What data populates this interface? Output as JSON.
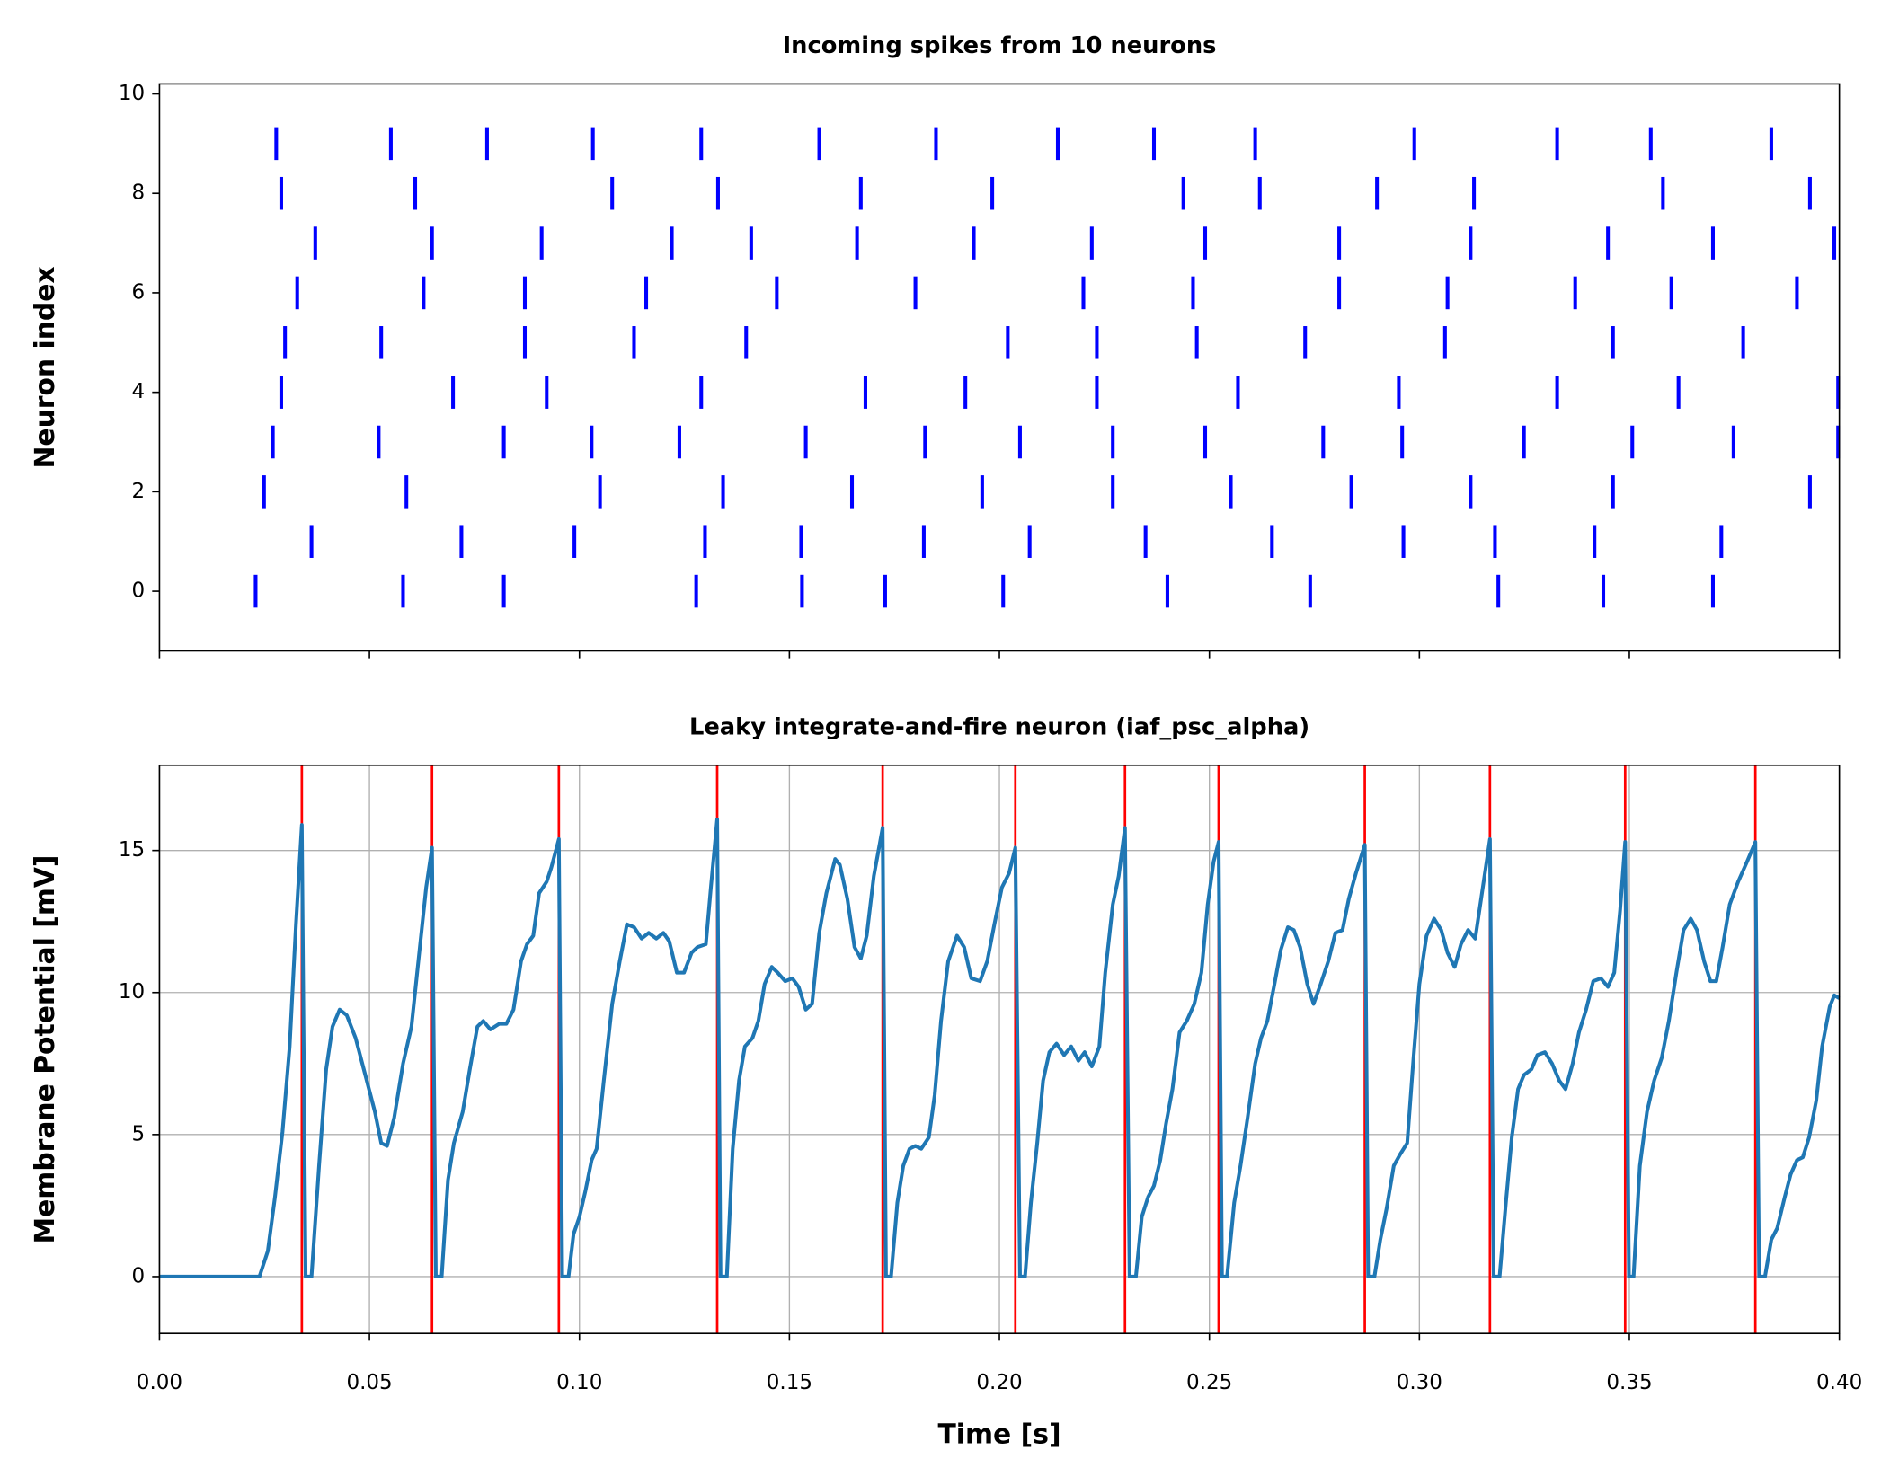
{
  "chart_data": [
    {
      "type": "raster",
      "title": "Incoming spikes from 10 neurons",
      "ylabel": "Neuron index",
      "xlim": [
        0,
        0.4
      ],
      "ylim": [
        -1.2,
        10.2
      ],
      "yticks": [
        0,
        2,
        4,
        6,
        8,
        10
      ],
      "sharex": true,
      "color": "blue",
      "series": [
        {
          "y": 0,
          "x": [
            0.0229,
            0.058,
            0.082,
            0.1278,
            0.153,
            0.1728,
            0.2009,
            0.24,
            0.274,
            0.3188,
            0.3438,
            0.3699
          ]
        },
        {
          "y": 1,
          "x": [
            0.0362,
            0.0719,
            0.0988,
            0.1299,
            0.1528,
            0.182,
            0.2072,
            0.2348,
            0.2649,
            0.2962,
            0.318,
            0.3417,
            0.3719
          ]
        },
        {
          "y": 2,
          "x": [
            0.0249,
            0.0588,
            0.1049,
            0.1342,
            0.1649,
            0.1959,
            0.227,
            0.2551,
            0.2838,
            0.3122,
            0.3461,
            0.393
          ]
        },
        {
          "y": 3,
          "x": [
            0.027,
            0.0522,
            0.082,
            0.1029,
            0.1238,
            0.1539,
            0.1823,
            0.2049,
            0.227,
            0.249,
            0.2771,
            0.2959,
            0.3249,
            0.3507,
            0.3748,
            0.3997
          ]
        },
        {
          "y": 4,
          "x": [
            0.029,
            0.0699,
            0.0922,
            0.129,
            0.1681,
            0.1919,
            0.2232,
            0.2568,
            0.2951,
            0.3328,
            0.3617,
            0.3997
          ]
        },
        {
          "y": 5,
          "x": [
            0.0299,
            0.0528,
            0.087,
            0.113,
            0.1397,
            0.202,
            0.2232,
            0.247,
            0.2728,
            0.3061,
            0.3461,
            0.3771
          ]
        },
        {
          "y": 6,
          "x": [
            0.0328,
            0.0629,
            0.087,
            0.1159,
            0.147,
            0.18,
            0.22,
            0.2461,
            0.2809,
            0.3067,
            0.3371,
            0.36,
            0.3899
          ]
        },
        {
          "y": 7,
          "x": [
            0.0371,
            0.0649,
            0.091,
            0.122,
            0.1409,
            0.1661,
            0.1939,
            0.222,
            0.249,
            0.2809,
            0.3122,
            0.3449,
            0.3699,
            0.3988
          ]
        },
        {
          "y": 8,
          "x": [
            0.029,
            0.0609,
            0.1078,
            0.133,
            0.167,
            0.1983,
            0.2438,
            0.262,
            0.2899,
            0.313,
            0.358,
            0.393
          ]
        },
        {
          "y": 9,
          "x": [
            0.0278,
            0.0551,
            0.078,
            0.1032,
            0.129,
            0.1571,
            0.1849,
            0.2139,
            0.2368,
            0.2609,
            0.2988,
            0.3328,
            0.3551,
            0.3838
          ]
        }
      ]
    },
    {
      "type": "line",
      "title": "Leaky integrate-and-fire neuron (iaf_psc_alpha)",
      "xlabel": "Time [s]",
      "ylabel": "Membrane Potential [mV]",
      "xlim": [
        0,
        0.4
      ],
      "ylim": [
        -2,
        18
      ],
      "xticks": [
        {
          "value": 0,
          "label": "0.00"
        },
        0.05,
        {
          "value": 0.1,
          "label": "0.10"
        },
        0.15,
        {
          "value": 0.2,
          "label": "0.20"
        },
        0.25,
        {
          "value": 0.3,
          "label": "0.30"
        },
        0.35,
        {
          "value": 0.4,
          "label": "0.40"
        }
      ],
      "yticks": [
        0,
        5,
        10,
        15
      ],
      "grid": true,
      "vlines": {
        "color": "red",
        "x": [
          0.0339,
          0.0649,
          0.0951,
          0.1328,
          0.1722,
          0.2038,
          0.2299,
          0.2522,
          0.287,
          0.3168,
          0.349,
          0.38
        ]
      },
      "series": [
        {
          "color": "#1f77b4",
          "x": [
            0,
            0.0238,
            0.0258,
            0.0275,
            0.0293,
            0.031,
            0.0325,
            0.0339,
            0.0348,
            0.0362,
            0.038,
            0.0397,
            0.0412,
            0.0429,
            0.0446,
            0.0467,
            0.049,
            0.0513,
            0.0528,
            0.0542,
            0.0559,
            0.058,
            0.06,
            0.062,
            0.0635,
            0.0649,
            0.0658,
            0.0672,
            0.0687,
            0.0701,
            0.0722,
            0.0739,
            0.0757,
            0.0771,
            0.0788,
            0.0809,
            0.0826,
            0.0843,
            0.0861,
            0.0875,
            0.089,
            0.0904,
            0.0922,
            0.0933,
            0.0951,
            0.0959,
            0.0974,
            0.0986,
            0.1,
            0.1014,
            0.1029,
            0.1041,
            0.1058,
            0.1078,
            0.1096,
            0.1113,
            0.113,
            0.1148,
            0.1165,
            0.1183,
            0.12,
            0.1214,
            0.1232,
            0.1249,
            0.1267,
            0.1281,
            0.1301,
            0.1313,
            0.1328,
            0.1336,
            0.1351,
            0.1365,
            0.138,
            0.1394,
            0.1412,
            0.1426,
            0.1441,
            0.1458,
            0.1472,
            0.149,
            0.1507,
            0.1522,
            0.1539,
            0.1554,
            0.1571,
            0.1588,
            0.1609,
            0.162,
            0.1638,
            0.1655,
            0.167,
            0.1684,
            0.1701,
            0.1722,
            0.173,
            0.1742,
            0.1757,
            0.1771,
            0.1786,
            0.18,
            0.1814,
            0.1832,
            0.1846,
            0.1861,
            0.1878,
            0.1899,
            0.1916,
            0.1933,
            0.1954,
            0.1971,
            0.1988,
            0.2006,
            0.2023,
            0.2038,
            0.2049,
            0.2061,
            0.2075,
            0.209,
            0.2104,
            0.2119,
            0.2136,
            0.2154,
            0.2171,
            0.2188,
            0.2203,
            0.222,
            0.2238,
            0.2252,
            0.227,
            0.2284,
            0.2299,
            0.231,
            0.2325,
            0.2339,
            0.2354,
            0.2368,
            0.2383,
            0.2397,
            0.2412,
            0.2429,
            0.2446,
            0.2464,
            0.2481,
            0.2496,
            0.251,
            0.2522,
            0.253,
            0.2542,
            0.2559,
            0.2574,
            0.2591,
            0.2609,
            0.2623,
            0.2638,
            0.2655,
            0.267,
            0.2687,
            0.2701,
            0.2716,
            0.2733,
            0.2748,
            0.2765,
            0.2783,
            0.28,
            0.2817,
            0.2832,
            0.2849,
            0.287,
            0.2878,
            0.2893,
            0.2907,
            0.2922,
            0.2939,
            0.2954,
            0.2971,
            0.2986,
            0.3,
            0.3017,
            0.3035,
            0.3052,
            0.3067,
            0.3084,
            0.3099,
            0.3116,
            0.3133,
            0.3151,
            0.3168,
            0.3177,
            0.3191,
            0.3206,
            0.322,
            0.3235,
            0.3249,
            0.3267,
            0.3281,
            0.3299,
            0.3316,
            0.3333,
            0.3348,
            0.3365,
            0.338,
            0.3397,
            0.3414,
            0.3432,
            0.3449,
            0.3464,
            0.3478,
            0.349,
            0.3499,
            0.351,
            0.3525,
            0.3542,
            0.3559,
            0.3577,
            0.3594,
            0.3612,
            0.3629,
            0.3646,
            0.3661,
            0.3678,
            0.3693,
            0.3707,
            0.3722,
            0.3739,
            0.3759,
            0.378,
            0.38,
            0.3809,
            0.3823,
            0.3838,
            0.3852,
            0.387,
            0.3884,
            0.3899,
            0.3913,
            0.3928,
            0.3945,
            0.3959,
            0.3977,
            0.3988,
            0.4
          ],
          "values": [
            0,
            0,
            0.9,
            2.8,
            5.1,
            8.1,
            12.4,
            15.9,
            0,
            0,
            3.9,
            7.3,
            8.8,
            9.4,
            9.2,
            8.4,
            7.1,
            5.8,
            4.7,
            4.6,
            5.6,
            7.5,
            8.8,
            11.6,
            13.7,
            15.1,
            0,
            0,
            3.4,
            4.7,
            5.8,
            7.3,
            8.8,
            9.0,
            8.7,
            8.9,
            8.9,
            9.4,
            11.1,
            11.7,
            12.0,
            13.5,
            13.9,
            14.4,
            15.4,
            0,
            0,
            1.5,
            2.1,
            3.0,
            4.1,
            4.5,
            6.9,
            9.6,
            11.1,
            12.4,
            12.3,
            11.9,
            12.1,
            11.9,
            12.1,
            11.8,
            10.7,
            10.7,
            11.4,
            11.6,
            11.7,
            13.7,
            16.1,
            0,
            0,
            4.5,
            6.9,
            8.1,
            8.4,
            9.0,
            10.3,
            10.9,
            10.7,
            10.4,
            10.5,
            10.2,
            9.4,
            9.6,
            12.1,
            13.5,
            14.7,
            14.5,
            13.3,
            11.6,
            11.2,
            12.0,
            14.1,
            15.8,
            0,
            0,
            2.6,
            3.9,
            4.5,
            4.6,
            4.5,
            4.9,
            6.4,
            9.0,
            11.1,
            12.0,
            11.6,
            10.5,
            10.4,
            11.1,
            12.4,
            13.7,
            14.2,
            15.1,
            0,
            0,
            2.6,
            4.7,
            6.9,
            7.9,
            8.2,
            7.8,
            8.1,
            7.6,
            7.9,
            7.4,
            8.1,
            10.7,
            13.1,
            14.1,
            15.8,
            0,
            0,
            2.1,
            2.8,
            3.2,
            4.1,
            5.4,
            6.6,
            8.6,
            9.0,
            9.6,
            10.7,
            13.1,
            14.6,
            15.3,
            0,
            0,
            2.6,
            3.9,
            5.6,
            7.5,
            8.4,
            9.0,
            10.3,
            11.5,
            12.3,
            12.2,
            11.6,
            10.3,
            9.6,
            10.3,
            11.1,
            12.1,
            12.2,
            13.3,
            14.2,
            15.2,
            0,
            0,
            1.3,
            2.4,
            3.9,
            4.3,
            4.7,
            7.7,
            10.3,
            12.0,
            12.6,
            12.2,
            11.4,
            10.9,
            11.7,
            12.2,
            11.9,
            13.7,
            15.4,
            0,
            0,
            2.6,
            4.9,
            6.6,
            7.1,
            7.3,
            7.8,
            7.9,
            7.5,
            6.9,
            6.6,
            7.5,
            8.6,
            9.4,
            10.4,
            10.5,
            10.2,
            10.7,
            12.9,
            15.3,
            0,
            0,
            3.9,
            5.8,
            6.9,
            7.7,
            9.0,
            10.7,
            12.2,
            12.6,
            12.2,
            11.1,
            10.4,
            10.4,
            11.6,
            13.1,
            13.9,
            14.6,
            15.3,
            0,
            0,
            1.3,
            1.7,
            2.8,
            3.6,
            4.1,
            4.2,
            4.9,
            6.2,
            8.1,
            9.5,
            9.9,
            9.8
          ]
        }
      ]
    }
  ]
}
